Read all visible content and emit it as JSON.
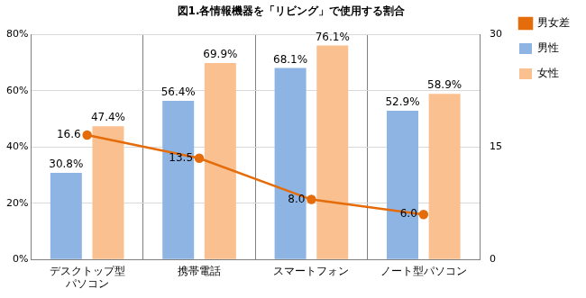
{
  "chart_data": {
    "type": "bar",
    "title": "図1.各情報機器を「リビング」で使用する割合",
    "categories": [
      "デスクトップ型パソコン",
      "携帯電話",
      "スマートフォン",
      "ノート型パソコン"
    ],
    "series": [
      {
        "name": "男性",
        "color": "#8db4e2",
        "values": [
          30.8,
          56.4,
          68.1,
          52.9
        ],
        "value_labels": [
          "30.8%",
          "56.4%",
          "68.1%",
          "52.9%"
        ]
      },
      {
        "name": "女性",
        "color": "#fac090",
        "values": [
          47.4,
          69.9,
          76.1,
          58.9
        ],
        "value_labels": [
          "47.4%",
          "69.9%",
          "76.1%",
          "58.9%"
        ]
      },
      {
        "name": "男女差",
        "type": "line",
        "axis": "y2",
        "color": "#e46c0a",
        "marker": "circle",
        "values": [
          16.6,
          13.5,
          8.0,
          6.0
        ],
        "value_labels": [
          "16.6",
          "13.5",
          "8.0",
          "6.0"
        ]
      }
    ],
    "ylim": [
      0,
      80
    ],
    "yticks": [
      {
        "value": 0,
        "label": "0%"
      },
      {
        "value": 20,
        "label": "20%"
      },
      {
        "value": 40,
        "label": "40%"
      },
      {
        "value": 60,
        "label": "60%"
      },
      {
        "value": 80,
        "label": "80%"
      }
    ],
    "y2lim": [
      0,
      30
    ],
    "y2ticks": [
      0,
      15,
      30
    ],
    "grid": true,
    "legend": "right",
    "data_labels": true
  }
}
